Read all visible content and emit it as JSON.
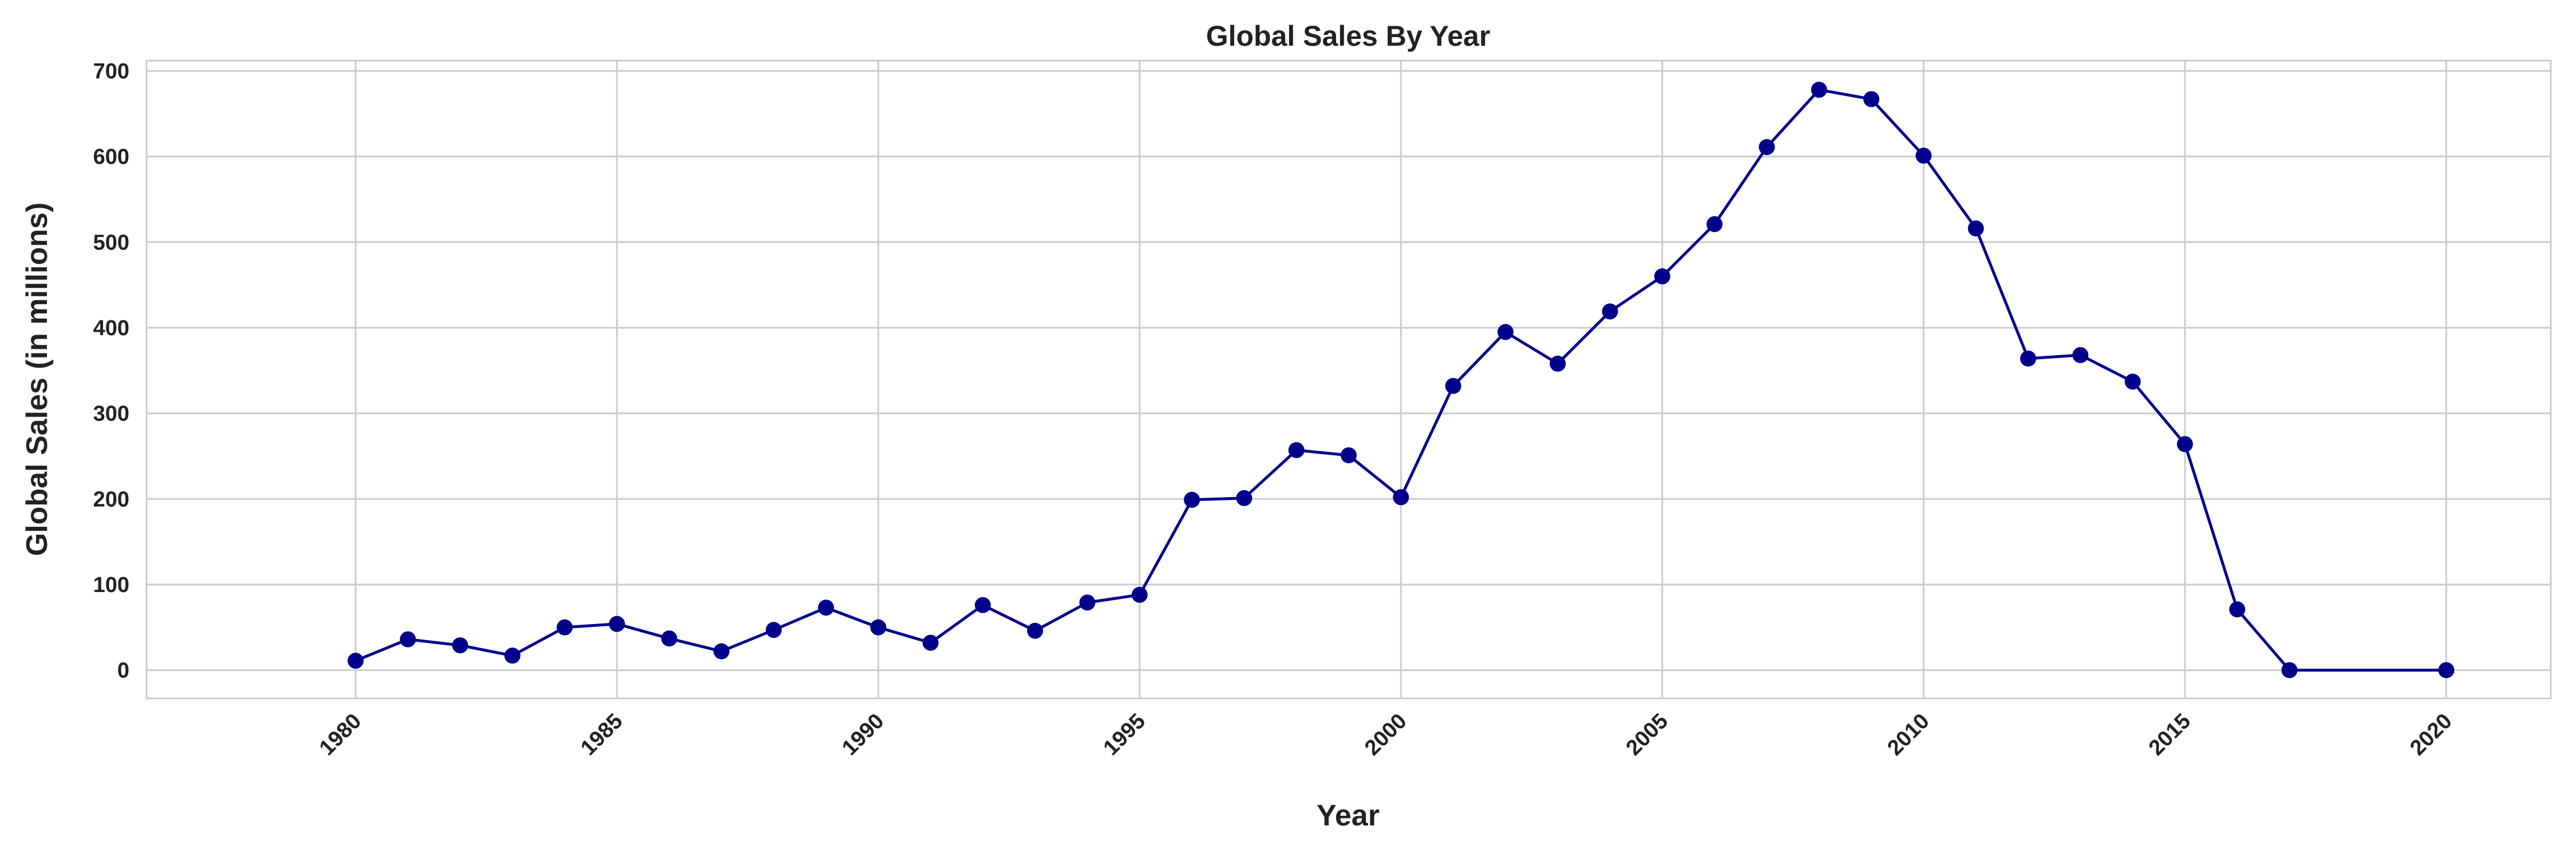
{
  "chart_data": {
    "type": "line",
    "title": "Global Sales By Year",
    "xlabel": "Year",
    "ylabel": "Global Sales (in millions)",
    "xlim": [
      1976,
      2022
    ],
    "ylim": [
      -33,
      712
    ],
    "xticks": [
      1980,
      1985,
      1990,
      1995,
      2000,
      2005,
      2010,
      2015,
      2020
    ],
    "yticks": [
      0,
      100,
      200,
      300,
      400,
      500,
      600,
      700
    ],
    "grid": true,
    "color": "#00008b",
    "series": [
      {
        "x": [
          1980,
          1981,
          1982,
          1983,
          1984,
          1985,
          1986,
          1987,
          1988,
          1989,
          1990,
          1991,
          1992,
          1993,
          1994,
          1995,
          1996,
          1997,
          1998,
          1999,
          2000,
          2001,
          2002,
          2003,
          2004,
          2005,
          2006,
          2007,
          2008,
          2009,
          2010,
          2011,
          2012,
          2013,
          2014,
          2015,
          2016,
          2017,
          2020
        ],
        "values": [
          11,
          36,
          29,
          17,
          50,
          54,
          37,
          22,
          47,
          73,
          50,
          32,
          76,
          46,
          79,
          88,
          199,
          201,
          257,
          251,
          202,
          332,
          395,
          358,
          419,
          460,
          521,
          611,
          678,
          667,
          601,
          516,
          364,
          368,
          337,
          264,
          71,
          0,
          0
        ]
      }
    ]
  }
}
